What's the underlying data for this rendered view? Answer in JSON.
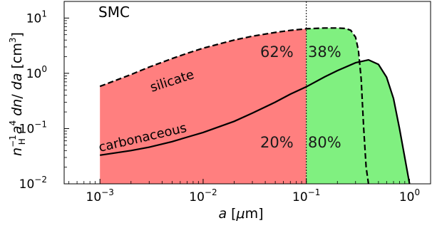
{
  "chart_data": {
    "type": "area",
    "title": "SMC",
    "xlabel": "a [μm]",
    "ylabel": "n_H^-1 a^4 dn/da [cm^3]",
    "x_scale": "log",
    "y_scale": "log",
    "xlim": [
      0.00045,
      1.6
    ],
    "ylim": [
      0.01,
      20
    ],
    "x_ticks": [
      {
        "value": 0.001,
        "base": "10",
        "exp": "−3"
      },
      {
        "value": 0.01,
        "base": "10",
        "exp": "−2"
      },
      {
        "value": 0.1,
        "base": "10",
        "exp": "−1"
      },
      {
        "value": 1,
        "base": "10",
        "exp": "0"
      }
    ],
    "y_ticks": [
      {
        "value": 0.01,
        "base": "10",
        "exp": "−2"
      },
      {
        "value": 0.1,
        "base": "10",
        "exp": "−1"
      },
      {
        "value": 1,
        "base": "10",
        "exp": "0"
      },
      {
        "value": 10,
        "base": "10",
        "exp": "1"
      }
    ],
    "divider_x": 0.1,
    "fill_colors": {
      "small_grains": "#ff7f7f",
      "large_grains": "#80f080"
    },
    "series": [
      {
        "name": "silicate",
        "style": "dashed",
        "x": [
          0.001,
          0.002,
          0.003,
          0.005,
          0.007,
          0.01,
          0.02,
          0.03,
          0.05,
          0.07,
          0.1,
          0.15,
          0.2,
          0.24,
          0.27,
          0.3,
          0.32,
          0.34,
          0.36,
          0.38,
          0.4
        ],
        "y": [
          0.58,
          0.95,
          1.3,
          1.85,
          2.3,
          2.85,
          4.0,
          4.7,
          5.5,
          6.0,
          6.4,
          6.6,
          6.6,
          6.5,
          6.0,
          4.5,
          2.6,
          0.8,
          0.1,
          0.02,
          0.01
        ]
      },
      {
        "name": "carbonaceous",
        "style": "solid",
        "x": [
          0.001,
          0.002,
          0.003,
          0.005,
          0.007,
          0.01,
          0.02,
          0.03,
          0.05,
          0.07,
          0.1,
          0.15,
          0.2,
          0.3,
          0.4,
          0.5,
          0.6,
          0.7,
          0.8,
          0.9,
          1.0
        ],
        "y": [
          0.033,
          0.04,
          0.046,
          0.058,
          0.07,
          0.085,
          0.135,
          0.19,
          0.3,
          0.42,
          0.57,
          0.86,
          1.12,
          1.55,
          1.75,
          1.45,
          0.85,
          0.35,
          0.1,
          0.03,
          0.01
        ]
      }
    ],
    "annotations": {
      "silicate_small": "62%",
      "silicate_large": "38%",
      "carbon_small": "20%",
      "carbon_large": "80%",
      "silicate_label": "silicate",
      "carbon_label": "carbonaceous"
    }
  }
}
